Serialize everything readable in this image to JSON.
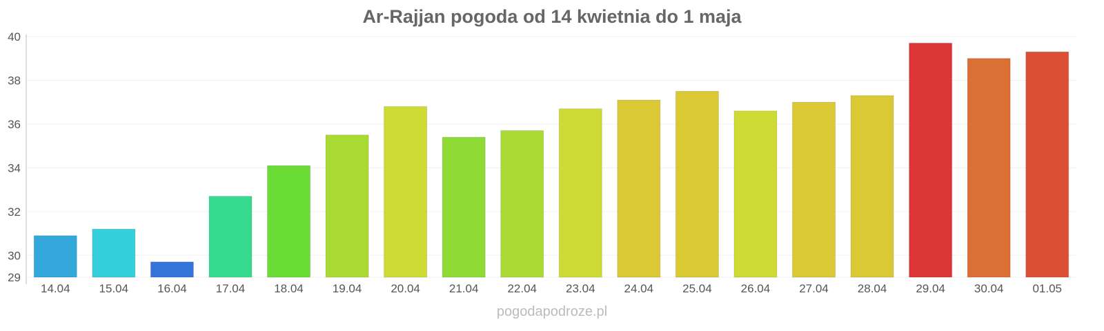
{
  "chart_data": {
    "type": "bar",
    "title": "Ar-Rajjan pogoda od 14 kwietnia do 1 maja",
    "xlabel": "",
    "ylabel": "",
    "ylim": [
      29,
      40
    ],
    "yticks": [
      29,
      30,
      32,
      34,
      36,
      38,
      40
    ],
    "grid": true,
    "categories": [
      "14.04",
      "15.04",
      "16.04",
      "17.04",
      "18.04",
      "19.04",
      "20.04",
      "21.04",
      "22.04",
      "23.04",
      "24.04",
      "25.04",
      "26.04",
      "27.04",
      "28.04",
      "29.04",
      "30.04",
      "01.05"
    ],
    "values": [
      30.9,
      31.2,
      29.7,
      32.7,
      34.1,
      35.5,
      36.8,
      35.4,
      35.7,
      36.7,
      37.1,
      37.5,
      36.6,
      37.0,
      37.3,
      39.7,
      39.0,
      39.3
    ],
    "colors": [
      "#35a8db",
      "#35cedb",
      "#3575db",
      "#35db8e",
      "#6bdb35",
      "#aadb35",
      "#cfdb35",
      "#8edb35",
      "#aadb35",
      "#cfdb35",
      "#dbc835",
      "#dbc835",
      "#cfdb35",
      "#dbc835",
      "#dbc835",
      "#db3535",
      "#db7035",
      "#db5035"
    ]
  },
  "credit": "pogodapodroze.pl"
}
